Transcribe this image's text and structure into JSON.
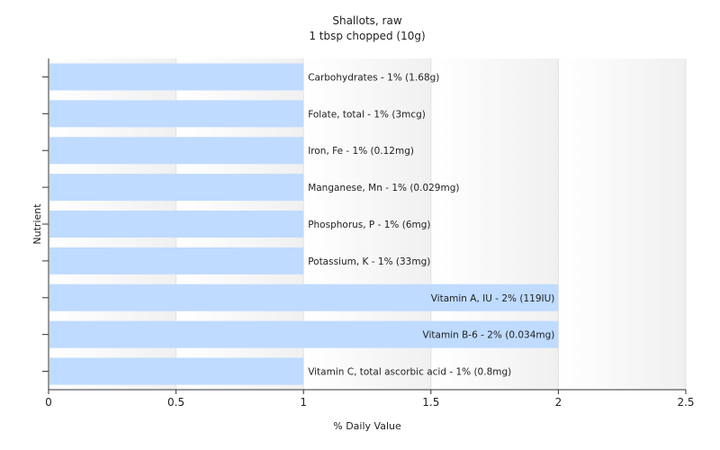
{
  "chart_data": {
    "type": "bar",
    "orientation": "horizontal",
    "title": "Shallots, raw",
    "subtitle": "1 tbsp chopped (10g)",
    "xlabel": "% Daily Value",
    "ylabel": "Nutrient",
    "xlim": [
      0,
      2.5
    ],
    "xticks": [
      "0",
      "0.5",
      "1",
      "1.5",
      "2",
      "2.5"
    ],
    "bar_color": "#bfdbff",
    "grid": "vertical",
    "categories": [
      "Carbohydrates",
      "Folate, total",
      "Iron, Fe",
      "Manganese, Mn",
      "Phosphorus, P",
      "Potassium, K",
      "Vitamin A, IU",
      "Vitamin B-6",
      "Vitamin C, total ascorbic acid"
    ],
    "values": [
      1,
      1,
      1,
      1,
      1,
      1,
      2,
      2,
      1
    ],
    "labels": [
      "Carbohydrates - 1% (1.68g)",
      "Folate, total - 1% (3mcg)",
      "Iron, Fe - 1% (0.12mg)",
      "Manganese, Mn - 1% (0.029mg)",
      "Phosphorus, P - 1% (6mg)",
      "Potassium, K - 1% (33mg)",
      "Vitamin A, IU - 2% (119IU)",
      "Vitamin B-6 - 2% (0.034mg)",
      "Vitamin C, total ascorbic acid - 1% (0.8mg)"
    ]
  }
}
